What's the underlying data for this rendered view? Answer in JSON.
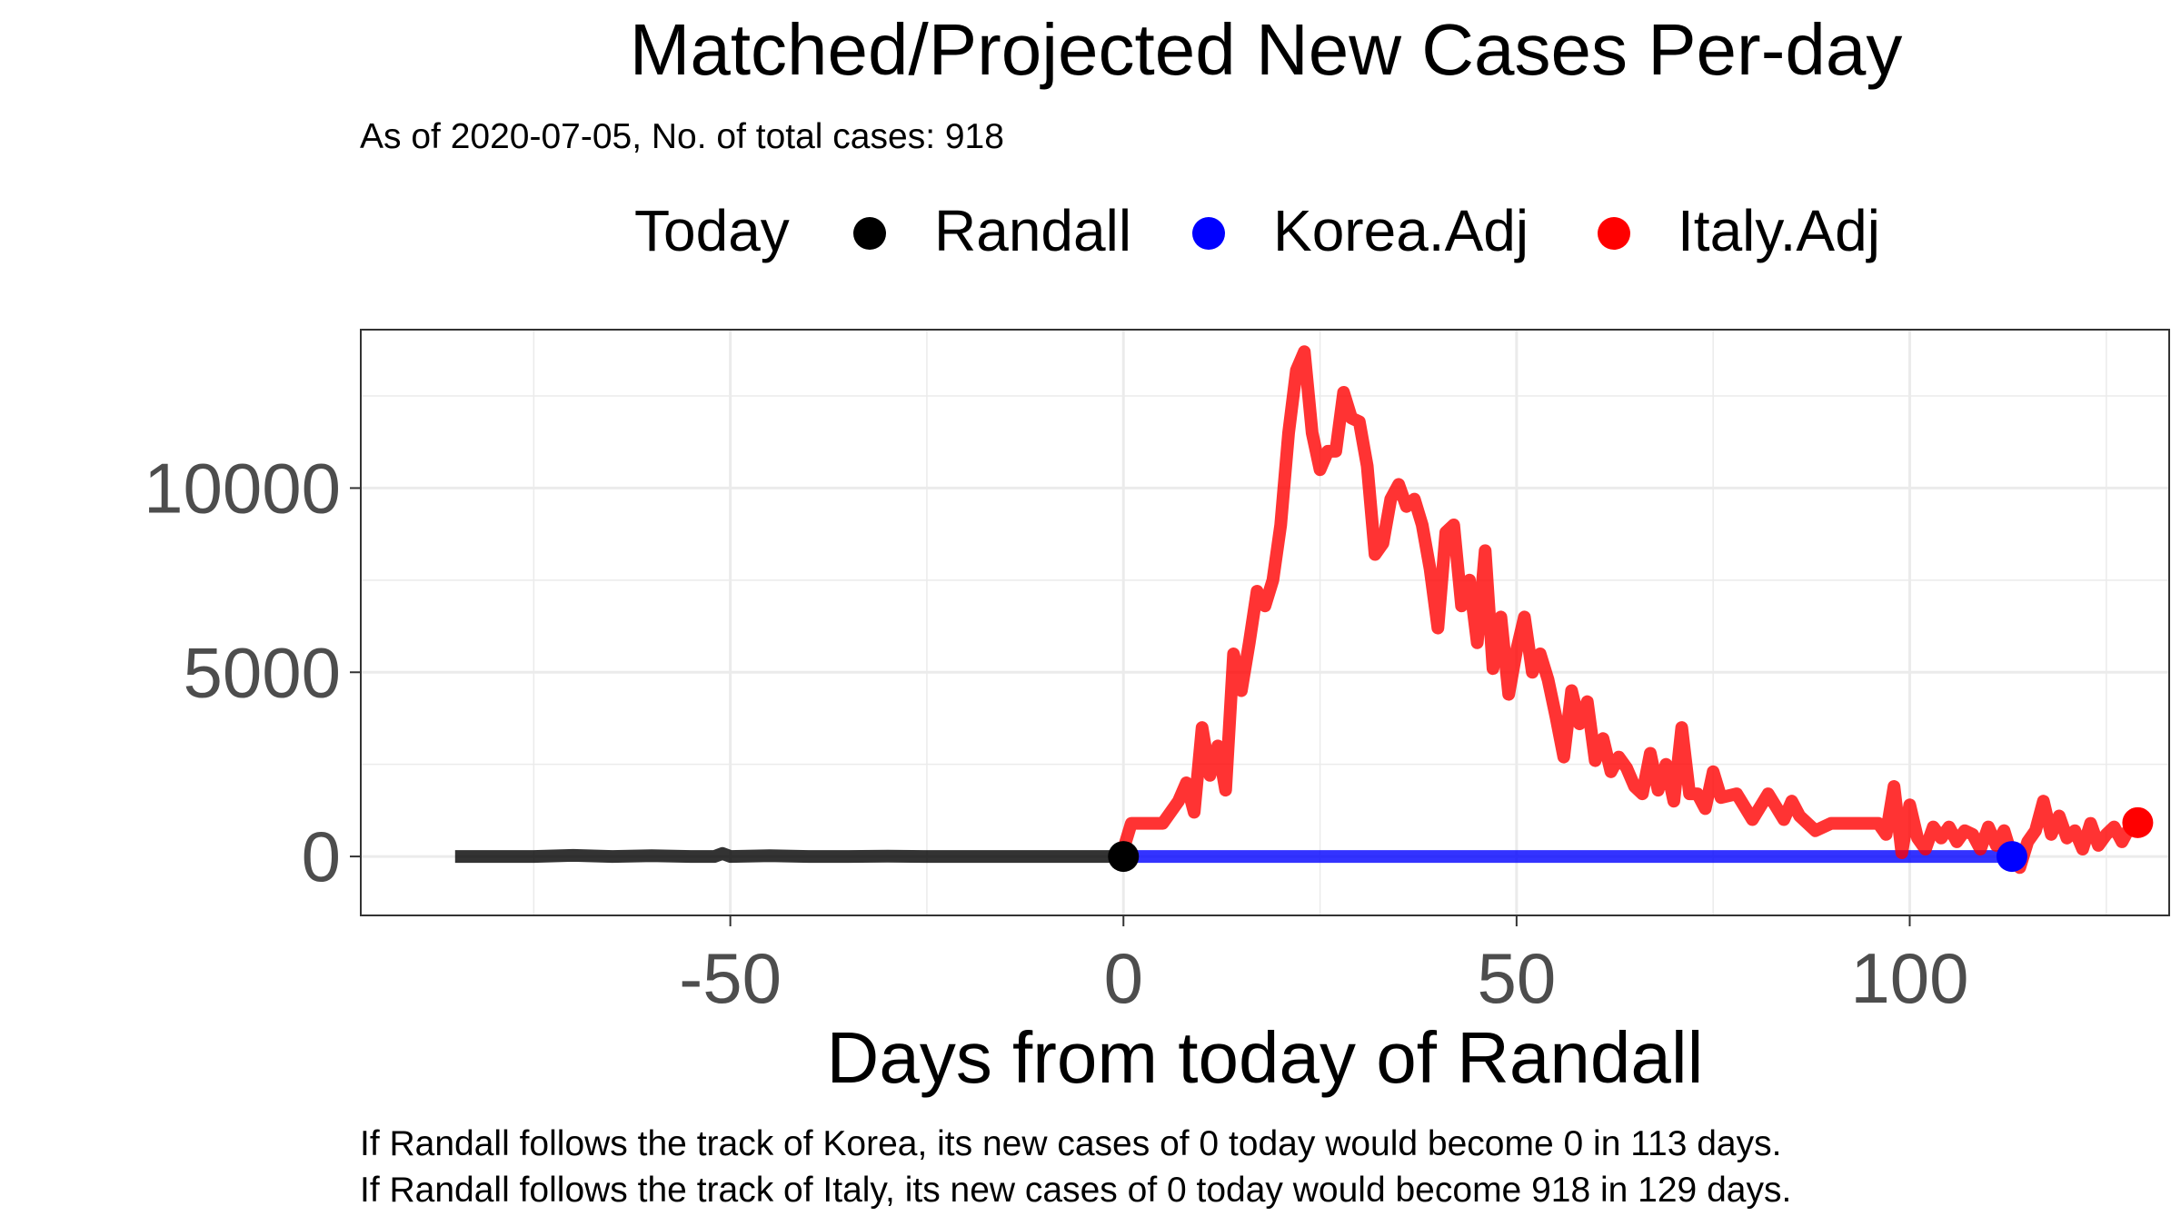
{
  "chart_data": {
    "type": "line",
    "title": "Matched/Projected New Cases Per-day",
    "subtitle": "As of 2020-07-05, No. of total cases: 918",
    "xlabel": "Days from today of Randall",
    "ylabel": "",
    "xlim": [
      -97,
      133
    ],
    "ylim": [
      -1600,
      14300
    ],
    "x_ticks": [
      -50,
      0,
      50,
      100
    ],
    "y_ticks": [
      0,
      5000,
      10000
    ],
    "x_tick_labels": [
      "-50",
      "0",
      "50",
      "100"
    ],
    "y_tick_labels": [
      "0",
      "5000",
      "10000"
    ],
    "grid": true,
    "legend": {
      "position": "top",
      "title": "Today",
      "entries": [
        "Randall",
        "Korea.Adj",
        "Italy.Adj"
      ]
    },
    "colors": {
      "Randall": "#000000",
      "Korea.Adj": "#0000ff",
      "Italy.Adj": "#ff0000"
    },
    "series": [
      {
        "name": "Randall",
        "color": "#000000",
        "x": [
          -85,
          -75,
          -70,
          -65,
          -60,
          -55,
          -52,
          -51,
          -50,
          -45,
          -40,
          -35,
          -30,
          -25,
          -20,
          -15,
          -10,
          -5,
          -2,
          -1,
          0
        ],
        "y": [
          0,
          0,
          30,
          0,
          20,
          0,
          0,
          80,
          0,
          20,
          0,
          0,
          10,
          0,
          0,
          0,
          0,
          0,
          0,
          0,
          0
        ]
      },
      {
        "name": "Korea.Adj",
        "color": "#0000ff",
        "x": [
          0,
          10,
          20,
          30,
          40,
          50,
          60,
          70,
          80,
          90,
          95,
          100,
          105,
          110,
          113
        ],
        "y": [
          0,
          0,
          0,
          0,
          0,
          0,
          0,
          0,
          0,
          0,
          0,
          0,
          0,
          0,
          0
        ]
      },
      {
        "name": "Italy.Adj",
        "color": "#ff0000",
        "x": [
          0,
          1,
          3,
          5,
          7,
          8,
          9,
          10,
          11,
          12,
          13,
          14,
          15,
          16,
          17,
          18,
          19,
          20,
          21,
          22,
          23,
          24,
          25,
          26,
          27,
          28,
          29,
          30,
          31,
          32,
          33,
          34,
          35,
          36,
          37,
          38,
          39,
          40,
          41,
          42,
          43,
          44,
          45,
          46,
          47,
          48,
          49,
          50,
          51,
          52,
          53,
          54,
          55,
          56,
          57,
          58,
          59,
          60,
          61,
          62,
          63,
          64,
          65,
          66,
          67,
          68,
          69,
          70,
          71,
          72,
          73,
          74,
          75,
          76,
          78,
          80,
          82,
          84,
          85,
          86,
          88,
          90,
          92,
          95,
          96,
          97,
          98,
          99,
          100,
          101,
          102,
          103,
          104,
          105,
          106,
          107,
          108,
          109,
          110,
          111,
          112,
          113,
          114,
          115,
          116,
          117,
          118,
          119,
          120,
          121,
          122,
          123,
          124,
          125,
          126,
          127,
          128,
          129
        ],
        "y": [
          200,
          900,
          900,
          900,
          1500,
          2000,
          1200,
          3500,
          2200,
          3000,
          1800,
          5500,
          4500,
          5800,
          7200,
          6800,
          7500,
          9000,
          11500,
          13200,
          13700,
          11500,
          10500,
          11000,
          11000,
          12600,
          11900,
          11800,
          10600,
          8200,
          8500,
          9700,
          10100,
          9500,
          9700,
          9000,
          7800,
          6200,
          8800,
          9000,
          6800,
          7500,
          5800,
          8300,
          5100,
          6500,
          4400,
          5600,
          6500,
          5000,
          5500,
          4800,
          3800,
          2700,
          4500,
          3600,
          4200,
          2600,
          3200,
          2300,
          2700,
          2400,
          1900,
          1700,
          2800,
          1800,
          2500,
          1500,
          3500,
          1700,
          1700,
          1300,
          2300,
          1600,
          1700,
          1000,
          1700,
          1000,
          1500,
          1100,
          700,
          900,
          900,
          900,
          900,
          600,
          1900,
          100,
          1400,
          500,
          200,
          800,
          500,
          800,
          400,
          700,
          600,
          200,
          800,
          300,
          700,
          0,
          -300,
          400,
          700,
          1500,
          600,
          1100,
          500,
          700,
          200,
          900,
          300,
          600,
          800,
          400,
          800,
          918
        ]
      }
    ],
    "today_points": [
      {
        "name": "Randall",
        "x": 0,
        "y": 0
      },
      {
        "name": "Korea.Adj",
        "x": 113,
        "y": 0
      },
      {
        "name": "Italy.Adj",
        "x": 129,
        "y": 918
      }
    ],
    "annotations": [
      "If Randall follows the track of Korea, its new cases of 0 today would become 0 in 113 days.",
      "If Randall follows the track of Italy, its new cases of 0 today would become 918 in 129 days."
    ]
  }
}
